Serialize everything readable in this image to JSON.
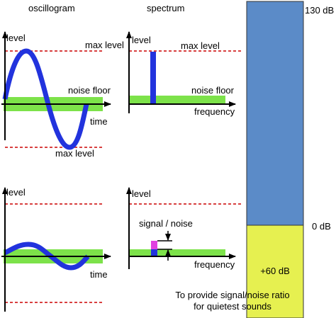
{
  "headers": [
    "oscillogram",
    "spectrum"
  ],
  "panels": [
    {
      "axis_label": "level",
      "max_label": "max level",
      "noise_label": "noise floor",
      "x_label": "time",
      "min_label": "max level"
    },
    {
      "axis_label": "level",
      "max_label": "max level",
      "noise_label": "noise floor",
      "x_label": "frequency"
    },
    {
      "axis_label": "level",
      "x_label": "time"
    },
    {
      "axis_label": "level",
      "ratio_label": "signal / noise",
      "x_label": "frequency"
    }
  ],
  "bar": {
    "top_label": "130 dB",
    "bottom_label": "0 dB",
    "segment_label": "+60 dB"
  },
  "caption": [
    "To provide signal/noise ratio",
    "for quietest sounds"
  ]
}
